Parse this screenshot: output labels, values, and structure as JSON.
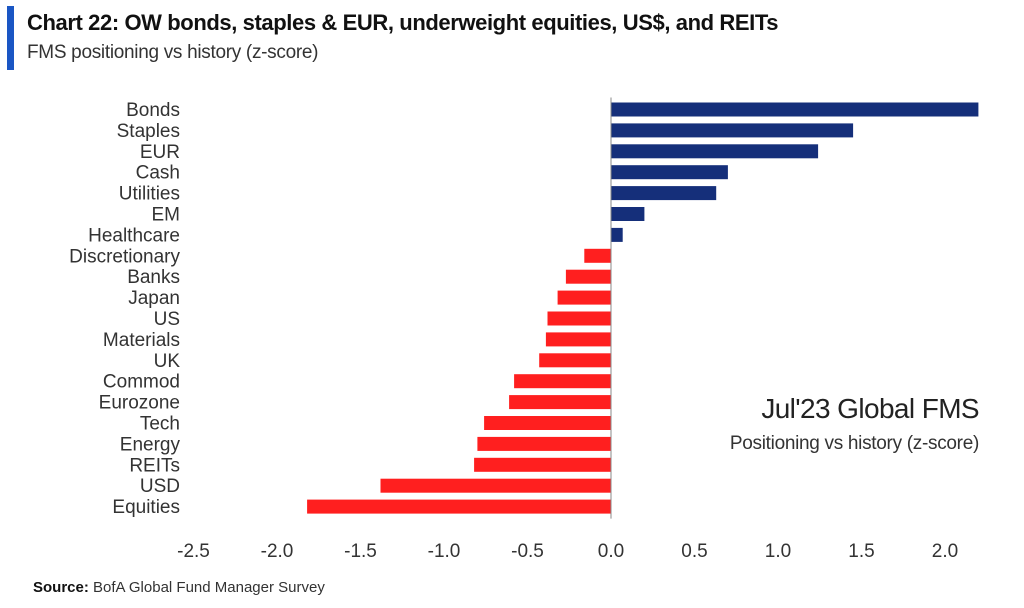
{
  "header": {
    "title": "Chart 22: OW bonds, staples & EUR, underweight equities, US$, and REITs",
    "subtitle": "FMS positioning vs history (z-score)"
  },
  "annotation": {
    "title": "Jul'23 Global FMS",
    "subtitle": "Positioning vs history (z-score)"
  },
  "footer": {
    "source_label": "Source:",
    "source_text": "BofA Global Fund Manager Survey"
  },
  "colors": {
    "positive": "#152f7a",
    "negative": "#ff1f1f",
    "accent": "#1a56c4"
  },
  "chart_data": {
    "type": "bar",
    "orientation": "horizontal",
    "categories": [
      "Bonds",
      "Staples",
      "EUR",
      "Cash",
      "Utilities",
      "EM",
      "Healthcare",
      "Discretionary",
      "Banks",
      "Japan",
      "US",
      "Materials",
      "UK",
      "Commod",
      "Eurozone",
      "Tech",
      "Energy",
      "REITs",
      "USD",
      "Equities"
    ],
    "values": [
      2.2,
      1.45,
      1.24,
      0.7,
      0.63,
      0.2,
      0.07,
      -0.16,
      -0.27,
      -0.32,
      -0.38,
      -0.39,
      -0.43,
      -0.58,
      -0.61,
      -0.76,
      -0.8,
      -0.82,
      -1.38,
      -1.82
    ],
    "xlim": [
      -2.5,
      2.2
    ],
    "xticks": [
      "-2.5",
      "-2.0",
      "-1.5",
      "-1.0",
      "-0.5",
      "0.0",
      "0.5",
      "1.0",
      "1.5",
      "2.0"
    ],
    "grid": false
  }
}
